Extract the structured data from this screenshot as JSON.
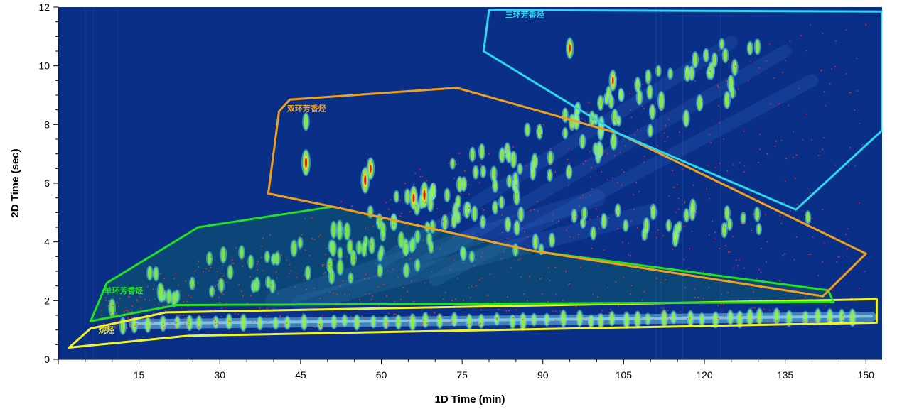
{
  "chart_data": {
    "type": "heatmap",
    "title": "",
    "xlabel": "1D Time (min)",
    "ylabel": "2D Time (sec)",
    "xlim": [
      0,
      153
    ],
    "ylim": [
      0,
      12
    ],
    "x_ticks": [
      15,
      30,
      45,
      60,
      75,
      90,
      105,
      120,
      135,
      150
    ],
    "y_ticks": [
      0,
      2,
      4,
      6,
      8,
      10,
      12
    ],
    "colors": {
      "background": "#0a2f86",
      "peak_low": "#5fe0ff",
      "peak_mid": "#9cf040",
      "peak_high": "#e01818",
      "marker": "#ff3030"
    },
    "regions": [
      {
        "name": "烷烃",
        "color": "#f2f22a",
        "polygon": [
          [
            2,
            0.4
          ],
          [
            6,
            1.05
          ],
          [
            20,
            1.6
          ],
          [
            152,
            2.05
          ],
          [
            152,
            1.25
          ],
          [
            24,
            0.8
          ]
        ]
      },
      {
        "name": "单环芳香烃",
        "color": "#22e022",
        "polygon": [
          [
            6,
            1.3
          ],
          [
            9,
            2.6
          ],
          [
            26,
            4.5
          ],
          [
            51,
            5.2
          ],
          [
            88,
            3.7
          ],
          [
            143,
            2.35
          ],
          [
            144,
            1.95
          ],
          [
            22,
            1.85
          ]
        ]
      },
      {
        "name": "双环芳香烃",
        "color": "#f0a020",
        "polygon": [
          [
            39,
            5.65
          ],
          [
            41,
            8.45
          ],
          [
            43,
            8.85
          ],
          [
            74,
            9.25
          ],
          [
            104,
            7.7
          ],
          [
            150,
            3.6
          ],
          [
            142,
            2.15
          ],
          [
            88,
            3.7
          ],
          [
            51,
            5.2
          ]
        ]
      },
      {
        "name": "三环芳香烃",
        "color": "#2ad8f0",
        "polygon": [
          [
            80,
            11.9
          ],
          [
            153,
            11.85
          ],
          [
            153,
            7.8
          ],
          [
            137,
            5.1
          ],
          [
            104,
            7.7
          ],
          [
            79,
            10.5
          ]
        ]
      }
    ],
    "major_peaks": [
      {
        "x": 46,
        "y": 6.7,
        "intensity": 1.0
      },
      {
        "x": 57,
        "y": 6.1,
        "intensity": 1.0
      },
      {
        "x": 68,
        "y": 5.6,
        "intensity": 1.0
      },
      {
        "x": 66,
        "y": 5.5,
        "intensity": 0.85
      },
      {
        "x": 58,
        "y": 6.5,
        "intensity": 0.75
      },
      {
        "x": 95,
        "y": 10.6,
        "intensity": 0.7
      },
      {
        "x": 103,
        "y": 9.5,
        "intensity": 0.7
      },
      {
        "x": 112,
        "y": 8.8,
        "intensity": 0.6
      },
      {
        "x": 10,
        "y": 1.75,
        "intensity": 0.55
      },
      {
        "x": 19,
        "y": 2.3,
        "intensity": 0.55
      },
      {
        "x": 46,
        "y": 8.1,
        "intensity": 0.5
      }
    ]
  }
}
